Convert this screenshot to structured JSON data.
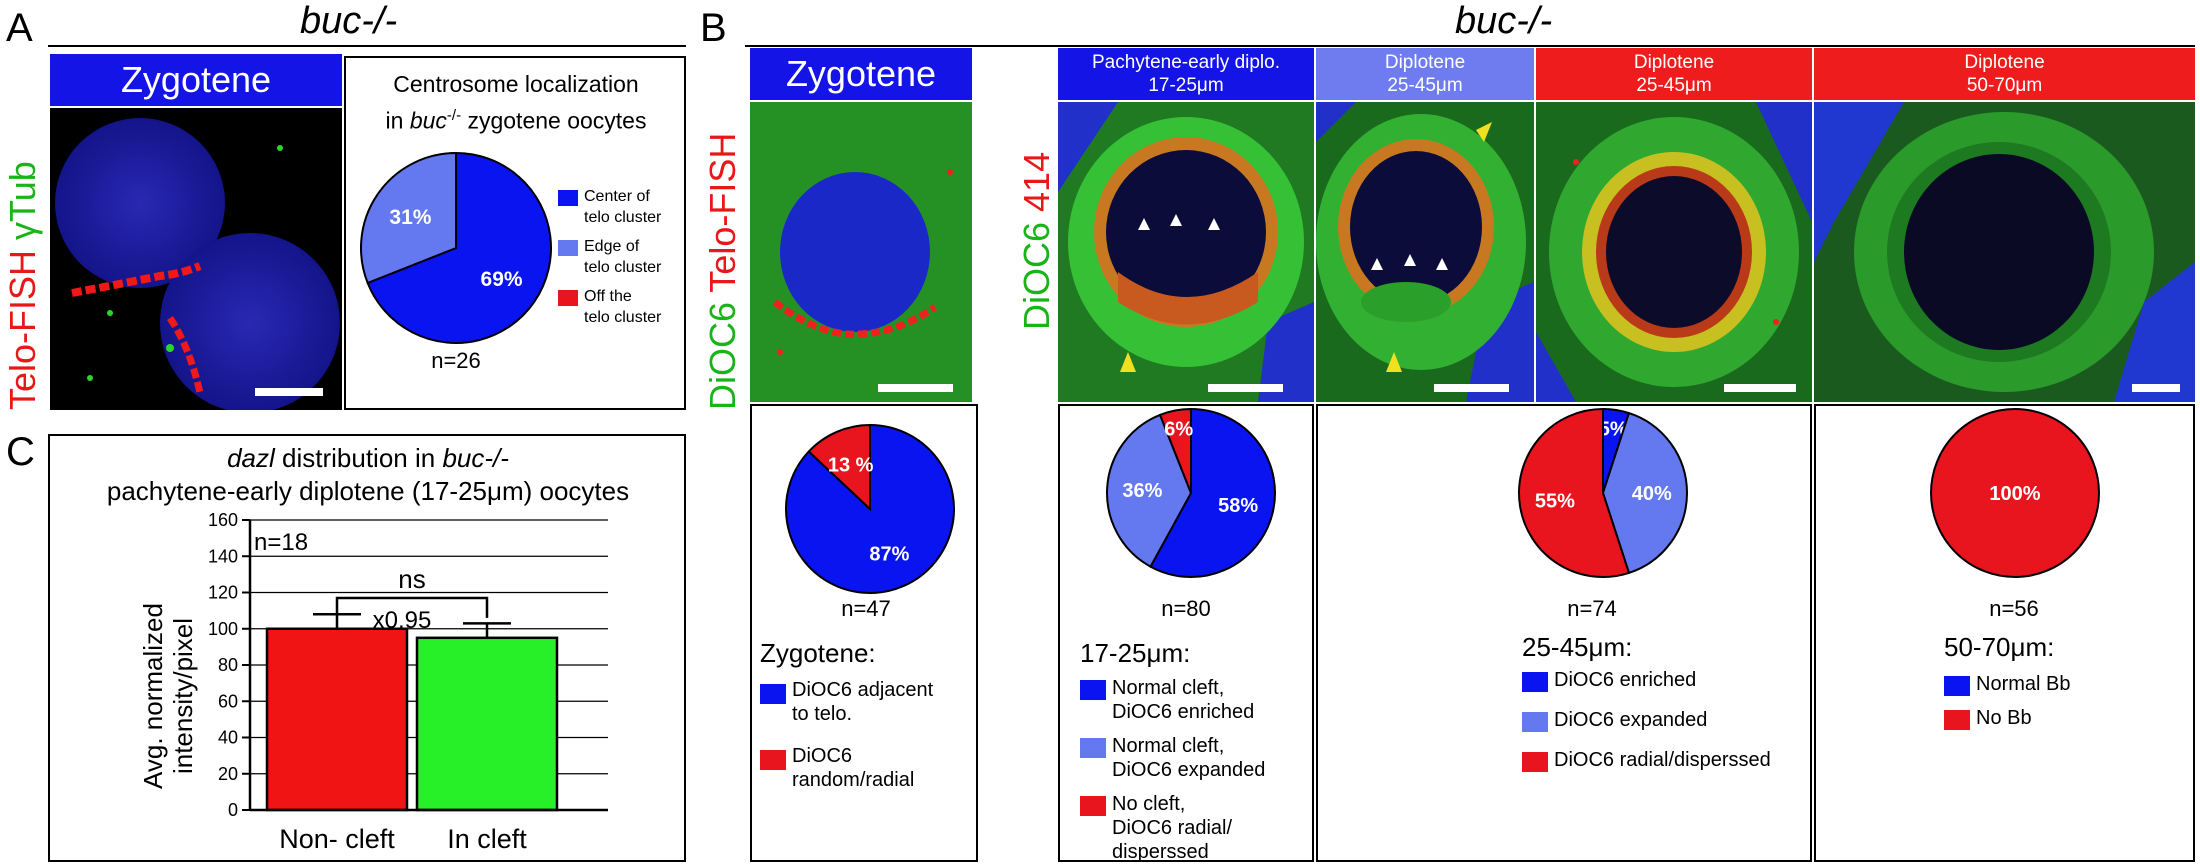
{
  "panelA": {
    "letter": "A",
    "genotype": "buc-/-",
    "stage": "Zygotene",
    "side_label": {
      "part1": "Telo-FISH ",
      "part2": "γTub"
    },
    "pie_title_line1": "Centrosome localization",
    "pie_title_line2_pre": "in ",
    "pie_title_line2_gene": "buc",
    "pie_title_line2_sup": "-/-",
    "pie_title_line2_post": " zygotene oocytes",
    "pie": {
      "slices": [
        {
          "label": "69%",
          "value": 69,
          "color": "#0a14f0"
        },
        {
          "label": "31%",
          "value": 31,
          "color": "#6478f0"
        }
      ]
    },
    "n": "n=26",
    "legend": [
      {
        "label": "Center of\ntelo cluster",
        "color": "#0a14f0"
      },
      {
        "label": "Edge of\ntelo cluster",
        "color": "#6478f0"
      },
      {
        "label": "Off the\ntelo cluster",
        "color": "#e8141e"
      }
    ]
  },
  "panelB": {
    "letter": "B",
    "genotype": "buc-/-",
    "zyg_stage": "Zygotene",
    "zyg_side_label": {
      "part1": "DiOC6 ",
      "part2": "Telo-FISH"
    },
    "side_label": {
      "part1": "DiOC6 ",
      "part2": "414"
    },
    "stages": [
      {
        "line1": "Pachytene-early diplo.",
        "line2": "17-25μm",
        "color": "#1414e6"
      },
      {
        "line1": "Diplotene",
        "line2": "25-45μm",
        "color": "#6e7cf0"
      },
      {
        "line1": "Diplotene",
        "line2": "25-45μm",
        "color": "#ee1c1c"
      },
      {
        "line1": "Diplotene",
        "line2": "50-70μm",
        "color": "#ee1c1c"
      }
    ],
    "groups": [
      {
        "n": "n=47",
        "legend_title": "Zygotene:",
        "pie": [
          {
            "label": "87%",
            "value": 87,
            "color": "#0a14f0"
          },
          {
            "label": "13 %",
            "value": 13,
            "color": "#e8141e"
          }
        ],
        "legend": [
          {
            "label": "DiOC6 adjacent\nto telo.",
            "color": "#0a14f0"
          },
          {
            "label": "DiOC6 random/radial",
            "color": "#e8141e"
          }
        ]
      },
      {
        "n": "n=80",
        "legend_title": "17-25μm:",
        "pie": [
          {
            "label": "58%",
            "value": 58,
            "color": "#0a14f0"
          },
          {
            "label": "36%",
            "value": 36,
            "color": "#6478f0"
          },
          {
            "label": "6%",
            "value": 6,
            "color": "#e8141e"
          }
        ],
        "legend": [
          {
            "label": "Normal cleft,\nDiOC6 enriched",
            "color": "#0a14f0"
          },
          {
            "label": "Normal cleft,\nDiOC6 expanded",
            "color": "#6478f0"
          },
          {
            "label": "No cleft,\nDiOC6 radial/\ndisperssed",
            "color": "#e8141e"
          }
        ]
      },
      {
        "n": "n=74",
        "legend_title": "25-45μm:",
        "pie": [
          {
            "label": "5%",
            "value": 5,
            "color": "#0a14f0"
          },
          {
            "label": "40%",
            "value": 40,
            "color": "#6478f0"
          },
          {
            "label": "55%",
            "value": 55,
            "color": "#e8141e"
          }
        ],
        "legend": [
          {
            "label": "DiOC6 enriched",
            "color": "#0a14f0"
          },
          {
            "label": "DiOC6 expanded",
            "color": "#6478f0"
          },
          {
            "label": "DiOC6 radial/disperssed",
            "color": "#e8141e"
          }
        ]
      },
      {
        "n": "n=56",
        "legend_title": "50-70μm:",
        "pie": [
          {
            "label": "100%",
            "value": 100,
            "color": "#e8141e"
          }
        ],
        "legend": [
          {
            "label": "Normal Bb",
            "color": "#0a14f0"
          },
          {
            "label": "No Bb",
            "color": "#e8141e"
          }
        ]
      }
    ]
  },
  "panelC": {
    "letter": "C",
    "title_gene": "dazl",
    "title_mid": " distribution in ",
    "title_geno": "buc-/-",
    "title_line2": "pachytene-early diplotene (17-25μm) oocytes",
    "ylabel_line1": "Avg. normalized",
    "ylabel_line2": "intensity/pixel",
    "n": "n=18",
    "ns": "ns",
    "fold": "x0.95"
  },
  "chart_data": {
    "type": "bar",
    "categories": [
      "Non- cleft",
      "In cleft"
    ],
    "values": [
      100,
      95
    ],
    "errors": [
      8,
      8
    ],
    "colors": [
      "#f01414",
      "#28f028"
    ],
    "ylim": [
      0,
      160
    ],
    "yticks": [
      0,
      20,
      40,
      60,
      80,
      100,
      120,
      140,
      160
    ],
    "title": "dazl distribution in buc-/- pachytene-early diplotene (17-25μm) oocytes",
    "ylabel": "Avg. normalized intensity/pixel",
    "xlabel": "",
    "grid": true
  }
}
